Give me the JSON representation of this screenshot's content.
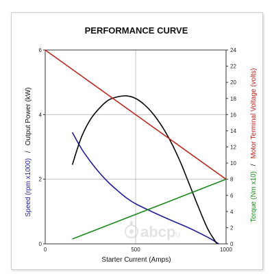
{
  "chart_data": {
    "type": "line",
    "title": "PERFORMANCE CURVE",
    "xlabel": "Starter Current (Amps)",
    "ylabel_left": {
      "part1": "Speed (rpm x1000)",
      "separator": "/",
      "part2": "Output Power (kW)"
    },
    "ylabel_right": {
      "part1": "Torque (Nm x10)",
      "separator": "/",
      "part2": "Motor Terminal Voltage (volts)"
    },
    "xlim": [
      0,
      1000
    ],
    "ylim_left": [
      0,
      6
    ],
    "ylim_right": [
      0,
      24
    ],
    "x_ticks": [
      "0",
      "500",
      "1000"
    ],
    "y_left_ticks": [
      "0",
      "2",
      "4",
      "6"
    ],
    "y_right_ticks": [
      "0",
      "2",
      "4",
      "6",
      "8",
      "10",
      "12",
      "14",
      "16",
      "18",
      "20",
      "22",
      "24"
    ],
    "grid": true,
    "series": [
      {
        "name": "Speed (rpm x1000)",
        "axis": "left",
        "color": "#1c1c9c",
        "x": [
          150,
          200,
          250,
          300,
          350,
          400,
          450,
          500,
          600,
          700,
          800,
          900,
          940,
          960
        ],
        "y": [
          3.45,
          2.95,
          2.55,
          2.2,
          1.9,
          1.65,
          1.42,
          1.24,
          0.97,
          0.72,
          0.48,
          0.2,
          0.07,
          0.0
        ]
      },
      {
        "name": "Output Power (kW)",
        "axis": "left",
        "color": "#000000",
        "x": [
          150,
          200,
          250,
          300,
          350,
          400,
          450,
          500,
          550,
          600,
          650,
          700,
          750,
          800,
          850,
          900,
          950
        ],
        "y": [
          2.45,
          3.3,
          3.85,
          4.2,
          4.45,
          4.55,
          4.58,
          4.5,
          4.3,
          4.0,
          3.6,
          3.1,
          2.5,
          1.8,
          1.1,
          0.45,
          0.0
        ]
      },
      {
        "name": "Motor Terminal Voltage (volts)",
        "axis": "right",
        "color": "#c0241c",
        "x": [
          0,
          1000
        ],
        "y": [
          24,
          8
        ]
      },
      {
        "name": "Torque (Nm x10)",
        "axis": "right",
        "color": "#1a8a1a",
        "x": [
          150,
          1000
        ],
        "y": [
          0.6,
          8
        ]
      }
    ]
  },
  "watermark": {
    "text": "аbcp",
    "suffix": ".ru"
  }
}
